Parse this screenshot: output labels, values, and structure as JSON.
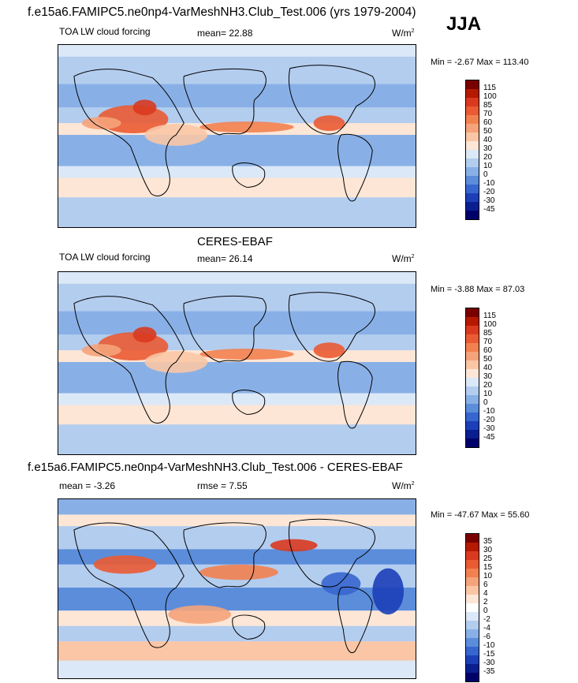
{
  "main_title": "f.e15a6.FAMIPC5.ne0np4-VarMeshNH3.Club_Test.006 (yrs 1979-2004)",
  "season": "JJA",
  "panels": [
    {
      "id": "model",
      "header": "",
      "variable": "TOA LW cloud forcing",
      "stat1": "mean=  22.88",
      "stat2": "",
      "units": "W/m",
      "units_sup": "2",
      "minmax": "Min =  -2.67 Max = 113.40",
      "colorbar_labels": [
        "115",
        "100",
        "85",
        "70",
        "60",
        "50",
        "40",
        "30",
        "20",
        "10",
        "0",
        "-10",
        "-20",
        "-30",
        "-45"
      ],
      "colors": [
        "#7a0000",
        "#b51a00",
        "#d93a1f",
        "#ea5b33",
        "#f28150",
        "#f5a37a",
        "#fac6a6",
        "#fde6d6",
        "#dbe8f7",
        "#b3cdef",
        "#89b0e6",
        "#5b8ddb",
        "#3766cf",
        "#1c3fb8",
        "#0a1f8f",
        "#00006b"
      ]
    },
    {
      "id": "obs",
      "header": "CERES-EBAF",
      "variable": "TOA LW cloud forcing",
      "stat1": "mean=  26.14",
      "stat2": "",
      "units": "W/m",
      "units_sup": "2",
      "minmax": "Min =  -3.88 Max =  87.03",
      "colorbar_labels": [
        "115",
        "100",
        "85",
        "70",
        "60",
        "50",
        "40",
        "30",
        "20",
        "10",
        "0",
        "-10",
        "-20",
        "-30",
        "-45"
      ],
      "colors": [
        "#7a0000",
        "#b51a00",
        "#d93a1f",
        "#ea5b33",
        "#f28150",
        "#f5a37a",
        "#fac6a6",
        "#fde6d6",
        "#dbe8f7",
        "#b3cdef",
        "#89b0e6",
        "#5b8ddb",
        "#3766cf",
        "#1c3fb8",
        "#0a1f8f",
        "#00006b"
      ]
    },
    {
      "id": "diff",
      "header": "f.e15a6.FAMIPC5.ne0np4-VarMeshNH3.Club_Test.006 - CERES-EBAF",
      "variable": "",
      "stat1": "mean =  -3.26",
      "stat2": "rmse =   7.55",
      "units": "W/m",
      "units_sup": "2",
      "minmax": "Min = -47.67 Max =  55.60",
      "colorbar_labels": [
        "35",
        "30",
        "25",
        "15",
        "10",
        "6",
        "4",
        "2",
        "0",
        "-2",
        "-4",
        "-6",
        "-10",
        "-15",
        "-30",
        "-35"
      ],
      "colors": [
        "#7a0000",
        "#b51a00",
        "#d93a1f",
        "#ea5b33",
        "#f28150",
        "#f5a37a",
        "#fac6a6",
        "#fde6d6",
        "#ffffff",
        "#dbe8f7",
        "#b3cdef",
        "#89b0e6",
        "#5b8ddb",
        "#3766cf",
        "#1c3fb8",
        "#0a1f8f",
        "#00006b"
      ]
    }
  ]
}
